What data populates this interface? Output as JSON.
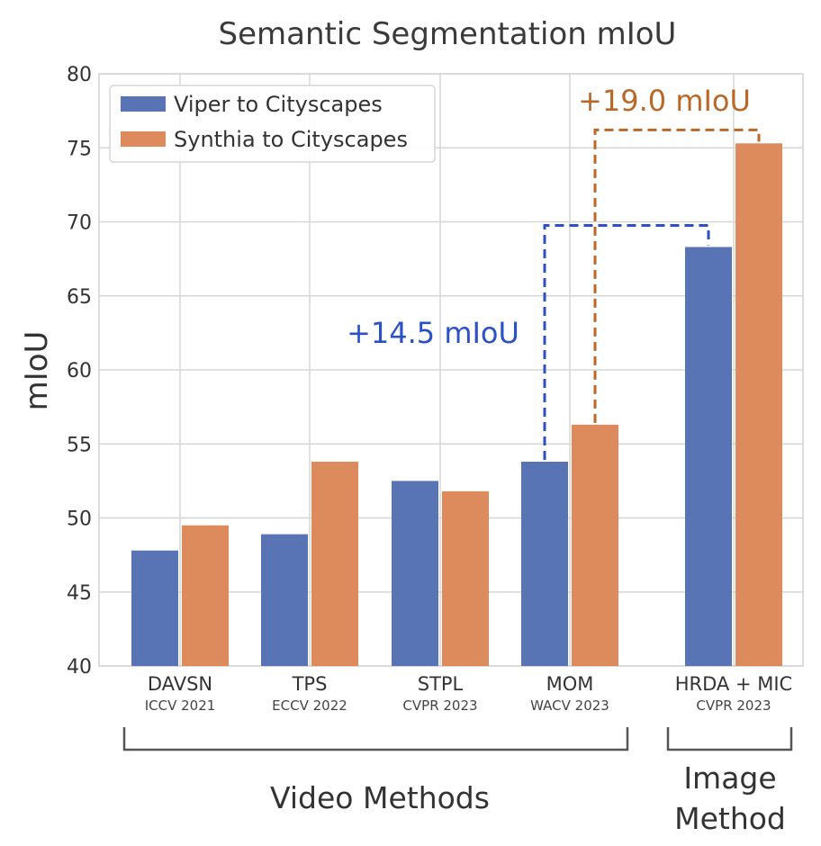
{
  "chart_data": {
    "type": "bar",
    "title": "Semantic Segmentation mIoU",
    "ylabel": "mIoU",
    "xlabel": "",
    "ylim": [
      40,
      80
    ],
    "yticks": [
      40,
      45,
      50,
      55,
      60,
      65,
      70,
      75,
      80
    ],
    "grid": true,
    "legend_position": "top-left",
    "categories": [
      "DAVSN",
      "TPS",
      "STPL",
      "MOM",
      "HRDA + MIC"
    ],
    "category_venues": [
      "ICCV 2021",
      "ECCV 2022",
      "CVPR 2023",
      "WACV 2023",
      "CVPR 2023"
    ],
    "series": [
      {
        "name": "Viper to Cityscapes",
        "color": "#5874b4",
        "values": [
          47.8,
          48.9,
          52.5,
          53.8,
          68.3
        ]
      },
      {
        "name": "Synthia to Cityscapes",
        "color": "#dd8a5c",
        "values": [
          49.5,
          53.8,
          51.8,
          56.3,
          75.3
        ]
      }
    ],
    "groups": [
      {
        "label": "Video Methods",
        "categories": [
          0,
          1,
          2,
          3
        ]
      },
      {
        "label": "Image\nMethod",
        "lines": [
          "Image",
          "Method"
        ],
        "categories": [
          4
        ]
      }
    ],
    "annotations": [
      {
        "text": "+14.5 mIoU",
        "series": 0,
        "from_category": 3,
        "to_category": 4,
        "color": "#2b52c4"
      },
      {
        "text": "+19.0 mIoU",
        "series": 1,
        "from_category": 3,
        "to_category": 4,
        "color": "#b8692a"
      }
    ]
  }
}
